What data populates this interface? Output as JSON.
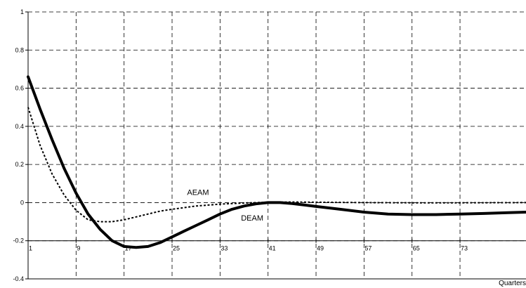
{
  "chart_data": {
    "type": "line",
    "xlabel": "Quarters",
    "ylabel": "",
    "xlim": [
      1,
      84
    ],
    "ylim": [
      -0.4,
      1
    ],
    "y_ticks": [
      1,
      0.8,
      0.6,
      0.4,
      0.2,
      0,
      -0.2,
      -0.4
    ],
    "y_tick_labels": [
      "1",
      "0.8",
      "0.6",
      "0.4",
      "0.2",
      "0",
      "-0.2",
      "-0.4"
    ],
    "x_ticks": [
      1,
      9,
      17,
      25,
      33,
      41,
      49,
      57,
      65,
      73
    ],
    "x_tick_labels": [
      "1",
      "9",
      "17",
      "25",
      "33",
      "41",
      "49",
      "57",
      "65",
      "73"
    ],
    "x_tick_axis_value": -0.2,
    "grid": true,
    "legend": "none (inline labels)",
    "series": [
      {
        "name": "DEAM",
        "style": "solid",
        "color": "#000000",
        "x": [
          1,
          3,
          5,
          7,
          9,
          11,
          13,
          15,
          17,
          19,
          21,
          23,
          25,
          27,
          29,
          31,
          33,
          35,
          37,
          39,
          41,
          43,
          45,
          47,
          49,
          53,
          57,
          61,
          65,
          69,
          73,
          77,
          81,
          84
        ],
        "y": [
          0.66,
          0.49,
          0.33,
          0.18,
          0.05,
          -0.06,
          -0.14,
          -0.2,
          -0.23,
          -0.235,
          -0.23,
          -0.21,
          -0.18,
          -0.15,
          -0.12,
          -0.09,
          -0.06,
          -0.035,
          -0.018,
          -0.006,
          0.0,
          0.0,
          -0.005,
          -0.012,
          -0.02,
          -0.035,
          -0.05,
          -0.06,
          -0.063,
          -0.063,
          -0.06,
          -0.057,
          -0.053,
          -0.05
        ]
      },
      {
        "name": "AEAM",
        "style": "dotted",
        "color": "#000000",
        "x": [
          1,
          3,
          5,
          7,
          9,
          11,
          13,
          15,
          17,
          19,
          21,
          23,
          25,
          29,
          33,
          37,
          41,
          45,
          49,
          57,
          65,
          73,
          84
        ],
        "y": [
          0.5,
          0.3,
          0.15,
          0.04,
          -0.04,
          -0.09,
          -0.1,
          -0.1,
          -0.09,
          -0.075,
          -0.06,
          -0.045,
          -0.035,
          -0.018,
          -0.008,
          -0.002,
          0.002,
          0.003,
          0.002,
          0.0,
          -0.001,
          -0.001,
          0.0
        ]
      }
    ],
    "annotations": [
      {
        "text": "AEAM",
        "x": 27.5,
        "y": 0.04
      },
      {
        "text": "DEAM",
        "x": 36.5,
        "y": -0.095
      }
    ]
  }
}
